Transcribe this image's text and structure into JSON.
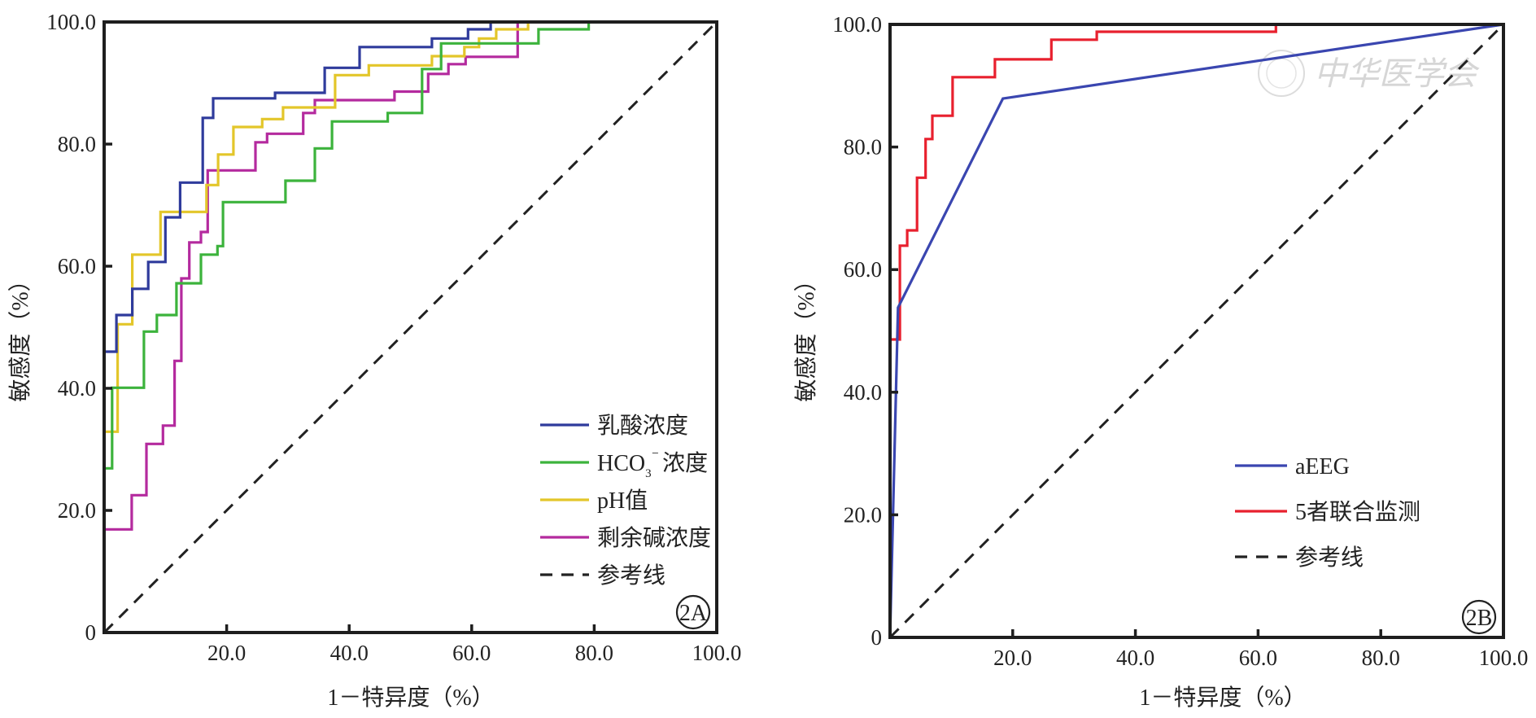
{
  "chart_data": [
    {
      "id": "2A",
      "type": "line",
      "subtype": "roc-step",
      "panel_label": "2A",
      "title": "",
      "xlabel": "1－特异度（%）",
      "ylabel": "敏感度（%）",
      "xlim": [
        0,
        100
      ],
      "ylim": [
        0,
        100
      ],
      "x_ticks": [
        "20.0",
        "40.0",
        "60.0",
        "80.0",
        "100.0"
      ],
      "x_tick_values": [
        20,
        40,
        60,
        80,
        100
      ],
      "y_ticks": [
        "0",
        "20.0",
        "40.0",
        "60.0",
        "80.0",
        "100.0"
      ],
      "y_tick_values": [
        0,
        20,
        40,
        60,
        80,
        100
      ],
      "grid": false,
      "legend_position": "bottom-right",
      "series": [
        {
          "name": "乳酸浓度",
          "color": "#2f3b9c",
          "points": [
            [
              0,
              0
            ],
            [
              0,
              46.0
            ],
            [
              2.0,
              46.0
            ],
            [
              2.0,
              52.0
            ],
            [
              4.6,
              52.0
            ],
            [
              4.6,
              56.3
            ],
            [
              7.2,
              56.3
            ],
            [
              7.2,
              60.7
            ],
            [
              10.0,
              60.7
            ],
            [
              10.0,
              68.0
            ],
            [
              12.4,
              68.0
            ],
            [
              12.4,
              73.7
            ],
            [
              16.1,
              73.7
            ],
            [
              16.1,
              84.3
            ],
            [
              17.8,
              84.3
            ],
            [
              17.8,
              87.5
            ],
            [
              27.9,
              87.5
            ],
            [
              27.9,
              88.4
            ],
            [
              36.0,
              88.4
            ],
            [
              36.0,
              92.5
            ],
            [
              41.7,
              92.5
            ],
            [
              41.7,
              95.9
            ],
            [
              53.5,
              95.9
            ],
            [
              53.5,
              97.3
            ],
            [
              59.4,
              97.3
            ],
            [
              59.4,
              98.8
            ],
            [
              63.1,
              98.8
            ],
            [
              63.1,
              100
            ],
            [
              100,
              100
            ]
          ]
        },
        {
          "name": "HCO₃⁻浓度",
          "name_main": "HCO",
          "name_sub": "3",
          "name_sup": "⁻",
          "name_tail": "浓度",
          "color": "#3cb33c",
          "points": [
            [
              0,
              0
            ],
            [
              0,
              26.9
            ],
            [
              1.3,
              26.9
            ],
            [
              1.3,
              40.1
            ],
            [
              6.5,
              40.1
            ],
            [
              6.5,
              49.3
            ],
            [
              8.6,
              49.3
            ],
            [
              8.6,
              52.0
            ],
            [
              11.8,
              52.0
            ],
            [
              11.8,
              57.2
            ],
            [
              15.8,
              57.2
            ],
            [
              15.8,
              61.9
            ],
            [
              18.5,
              61.9
            ],
            [
              18.5,
              63.3
            ],
            [
              19.4,
              63.3
            ],
            [
              19.4,
              70.5
            ],
            [
              29.6,
              70.5
            ],
            [
              29.6,
              74.0
            ],
            [
              34.4,
              74.0
            ],
            [
              34.4,
              79.3
            ],
            [
              37.2,
              79.3
            ],
            [
              37.2,
              83.7
            ],
            [
              46.3,
              83.7
            ],
            [
              46.3,
              85.1
            ],
            [
              51.9,
              85.1
            ],
            [
              51.9,
              92.3
            ],
            [
              55.0,
              92.3
            ],
            [
              55.0,
              96.5
            ],
            [
              70.9,
              96.5
            ],
            [
              70.9,
              98.8
            ],
            [
              79.1,
              98.8
            ],
            [
              79.1,
              100
            ],
            [
              100,
              100
            ]
          ]
        },
        {
          "name": "pH值",
          "color": "#e3c62a",
          "points": [
            [
              0,
              0
            ],
            [
              0,
              32.9
            ],
            [
              2.2,
              32.9
            ],
            [
              2.2,
              50.5
            ],
            [
              4.6,
              50.5
            ],
            [
              4.6,
              61.9
            ],
            [
              9.2,
              61.9
            ],
            [
              9.2,
              68.9
            ],
            [
              16.7,
              68.9
            ],
            [
              16.7,
              73.3
            ],
            [
              18.6,
              73.3
            ],
            [
              18.6,
              78.3
            ],
            [
              21.1,
              78.3
            ],
            [
              21.1,
              82.8
            ],
            [
              25.8,
              82.8
            ],
            [
              25.8,
              84.1
            ],
            [
              29.2,
              84.1
            ],
            [
              29.2,
              86.0
            ],
            [
              37.7,
              86.0
            ],
            [
              37.7,
              91.3
            ],
            [
              43.2,
              91.3
            ],
            [
              43.2,
              92.9
            ],
            [
              53.5,
              92.9
            ],
            [
              53.5,
              94.4
            ],
            [
              58.8,
              94.4
            ],
            [
              58.8,
              95.9
            ],
            [
              61.2,
              95.9
            ],
            [
              61.2,
              97.3
            ],
            [
              64.0,
              97.3
            ],
            [
              64.0,
              98.8
            ],
            [
              69.2,
              98.8
            ],
            [
              69.2,
              100
            ],
            [
              100,
              100
            ]
          ]
        },
        {
          "name": "剩余碱浓度",
          "color": "#b42a9e",
          "points": [
            [
              0,
              0
            ],
            [
              0,
              16.9
            ],
            [
              4.5,
              16.9
            ],
            [
              4.5,
              22.5
            ],
            [
              6.9,
              22.5
            ],
            [
              6.9,
              30.9
            ],
            [
              9.6,
              30.9
            ],
            [
              9.6,
              33.9
            ],
            [
              11.5,
              33.9
            ],
            [
              11.5,
              44.5
            ],
            [
              12.6,
              44.5
            ],
            [
              12.6,
              58.0
            ],
            [
              13.9,
              58.0
            ],
            [
              13.9,
              63.9
            ],
            [
              15.8,
              63.9
            ],
            [
              15.8,
              65.6
            ],
            [
              16.9,
              65.6
            ],
            [
              16.9,
              75.7
            ],
            [
              24.7,
              75.7
            ],
            [
              24.7,
              80.3
            ],
            [
              26.6,
              80.3
            ],
            [
              26.6,
              81.7
            ],
            [
              32.5,
              81.7
            ],
            [
              32.5,
              85.1
            ],
            [
              34.4,
              85.1
            ],
            [
              34.4,
              87.2
            ],
            [
              47.4,
              87.2
            ],
            [
              47.4,
              88.6
            ],
            [
              52.9,
              88.6
            ],
            [
              52.9,
              91.5
            ],
            [
              56.2,
              91.5
            ],
            [
              56.2,
              93.1
            ],
            [
              59.0,
              93.1
            ],
            [
              59.0,
              94.3
            ],
            [
              67.5,
              94.3
            ],
            [
              67.5,
              100
            ],
            [
              100,
              100
            ]
          ]
        },
        {
          "name": "参考线",
          "color": "#222222",
          "dashed": true,
          "points": [
            [
              0,
              0
            ],
            [
              100,
              100
            ]
          ]
        }
      ]
    },
    {
      "id": "2B",
      "type": "line",
      "subtype": "roc",
      "panel_label": "2B",
      "title": "",
      "xlabel": "1－特异度（%）",
      "ylabel": "敏感度（%）",
      "xlim": [
        0,
        100
      ],
      "ylim": [
        0,
        100
      ],
      "x_ticks": [
        "20.0",
        "40.0",
        "60.0",
        "80.0",
        "100.0"
      ],
      "x_tick_values": [
        20,
        40,
        60,
        80,
        100
      ],
      "y_ticks": [
        "0",
        "20.0",
        "40.0",
        "60.0",
        "80.0",
        "100.0"
      ],
      "y_tick_values": [
        0,
        20,
        40,
        60,
        80,
        100
      ],
      "grid": false,
      "legend_position": "bottom-right",
      "watermark": "中华医学会",
      "series": [
        {
          "name": "aEEG",
          "color": "#3a46b0",
          "points": [
            [
              0,
              0
            ],
            [
              1.3,
              53.8
            ],
            [
              18.4,
              87.9
            ],
            [
              100,
              100
            ]
          ]
        },
        {
          "name": "5者联合监测",
          "color": "#e8202e",
          "points": [
            [
              0,
              48.6
            ],
            [
              1.6,
              48.6
            ],
            [
              1.6,
              63.9
            ],
            [
              2.8,
              63.9
            ],
            [
              2.8,
              66.4
            ],
            [
              4.4,
              66.4
            ],
            [
              4.4,
              75.0
            ],
            [
              5.8,
              75.0
            ],
            [
              5.8,
              81.3
            ],
            [
              6.9,
              81.3
            ],
            [
              6.9,
              85.1
            ],
            [
              10.2,
              85.1
            ],
            [
              10.2,
              91.4
            ],
            [
              17.1,
              91.4
            ],
            [
              17.1,
              94.3
            ],
            [
              26.3,
              94.3
            ],
            [
              26.3,
              97.5
            ],
            [
              33.7,
              97.5
            ],
            [
              33.7,
              98.8
            ],
            [
              62.9,
              98.8
            ],
            [
              62.9,
              100
            ]
          ]
        },
        {
          "name": "参考线",
          "color": "#222222",
          "dashed": true,
          "points": [
            [
              0,
              0
            ],
            [
              100,
              100
            ]
          ]
        }
      ]
    }
  ]
}
